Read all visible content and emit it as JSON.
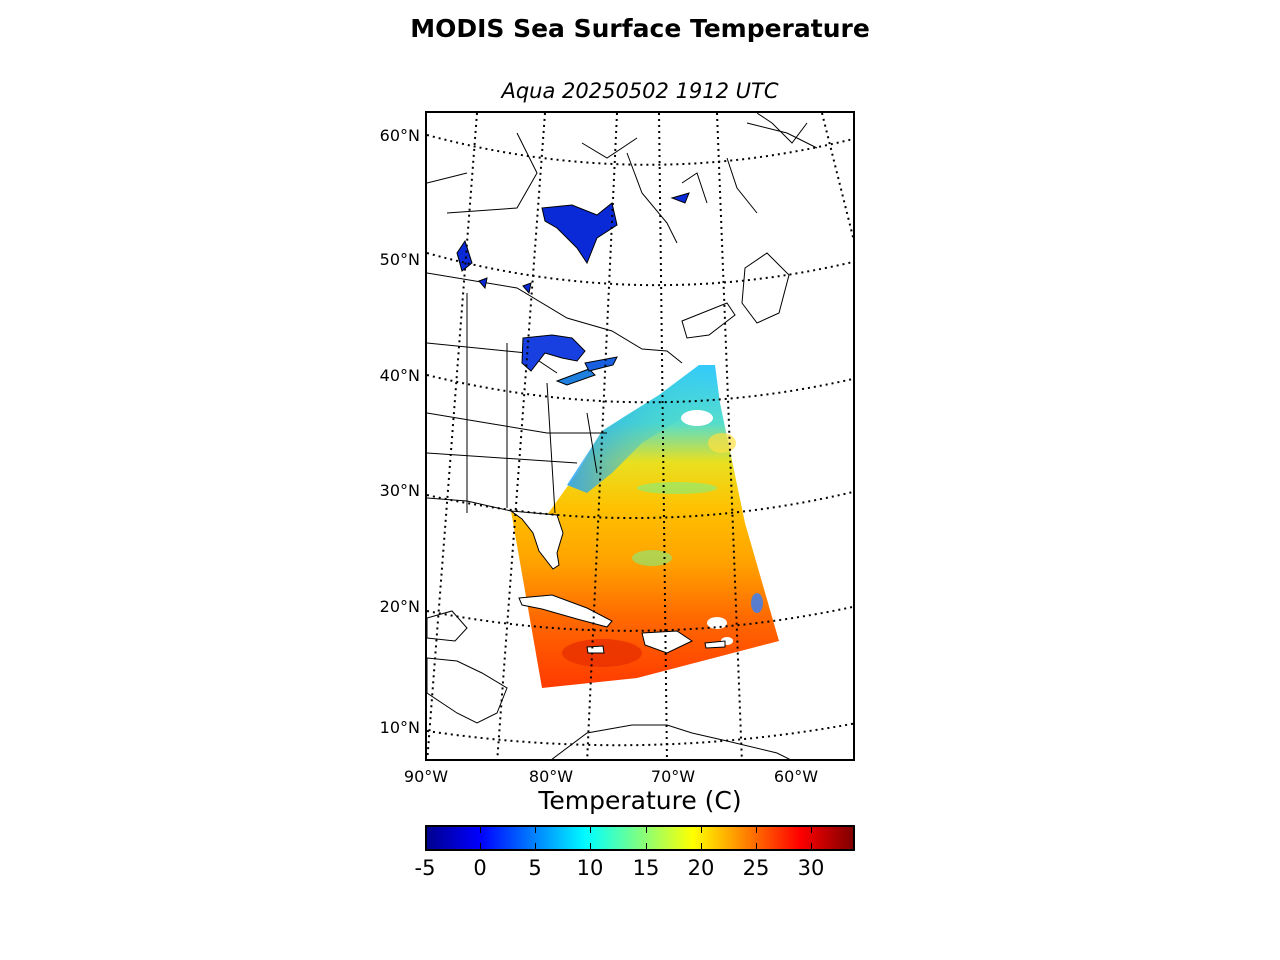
{
  "map": {
    "title": "MODIS Sea Surface Temperature",
    "subtitle": "Aqua 20250502 1912 UTC",
    "latitude_labels": [
      "60°N",
      "50°N",
      "40°N",
      "30°N",
      "20°N",
      "10°N"
    ],
    "longitude_labels": [
      "90°W",
      "80°W",
      "70°W",
      "60°W"
    ],
    "colorbar": {
      "label": "Temperature (C)",
      "ticks": [
        "-5",
        "0",
        "5",
        "10",
        "15",
        "20",
        "25",
        "30"
      ],
      "range": [
        -5,
        34
      ],
      "colormap": "jet"
    },
    "land_fill": "#ffffff",
    "coast_color": "#000000",
    "graticule": "dotted"
  }
}
